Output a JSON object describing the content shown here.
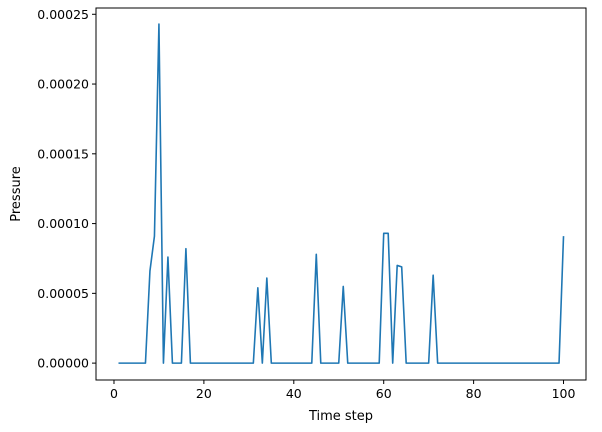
{
  "chart_data": {
    "type": "line",
    "title": "",
    "xlabel": "Time step",
    "ylabel": "Pressure",
    "xlim": [
      -4,
      105
    ],
    "ylim": [
      -1.21e-05,
      0.0002545
    ],
    "xticks": [
      0,
      20,
      40,
      60,
      80,
      100
    ],
    "xtick_labels": [
      "0",
      "20",
      "40",
      "60",
      "80",
      "100"
    ],
    "yticks": [
      0.0,
      5e-05,
      0.0001,
      0.00015,
      0.0002,
      0.00025
    ],
    "ytick_labels": [
      "0.00000",
      "0.00005",
      "0.00010",
      "0.00015",
      "0.00020",
      "0.00025"
    ],
    "grid": false,
    "legend": "none",
    "line_color": "#1f77b4",
    "series": [
      {
        "x": [
          1,
          2,
          3,
          4,
          5,
          6,
          7,
          8,
          9,
          10,
          11,
          12,
          13,
          14,
          15,
          16,
          17,
          18,
          19,
          20,
          21,
          22,
          23,
          24,
          25,
          26,
          27,
          28,
          29,
          30,
          31,
          32,
          33,
          34,
          35,
          36,
          37,
          38,
          39,
          40,
          41,
          42,
          43,
          44,
          45,
          46,
          47,
          48,
          49,
          50,
          51,
          52,
          53,
          54,
          55,
          56,
          57,
          58,
          59,
          60,
          61,
          62,
          63,
          64,
          65,
          66,
          67,
          68,
          69,
          70,
          71,
          72,
          73,
          74,
          75,
          76,
          77,
          78,
          79,
          80,
          81,
          82,
          83,
          84,
          85,
          86,
          87,
          88,
          89,
          90,
          91,
          92,
          93,
          94,
          95,
          96,
          97,
          98,
          99,
          100
        ],
        "values": [
          0,
          0,
          0,
          0,
          0,
          0,
          0,
          6.6e-05,
          9.1e-05,
          0.000243,
          0,
          7.6e-05,
          0,
          0,
          0,
          8.2e-05,
          0,
          0,
          0,
          0,
          0,
          0,
          0,
          0,
          0,
          0,
          0,
          0,
          0,
          0,
          0,
          5.4e-05,
          0,
          6.1e-05,
          0,
          0,
          0,
          0,
          0,
          0,
          0,
          0,
          0,
          0,
          7.8e-05,
          0,
          0,
          0,
          0,
          0,
          5.5e-05,
          0,
          0,
          0,
          0,
          0,
          0,
          0,
          0,
          9.3e-05,
          9.3e-05,
          0,
          7e-05,
          6.9e-05,
          0,
          0,
          0,
          0,
          0,
          0,
          6.3e-05,
          0,
          0,
          0,
          0,
          0,
          0,
          0,
          0,
          0,
          0,
          0,
          0,
          0,
          0,
          0,
          0,
          0,
          0,
          0,
          0,
          0,
          0,
          0,
          0,
          0,
          0,
          0,
          0,
          9.1e-05
        ]
      }
    ]
  }
}
